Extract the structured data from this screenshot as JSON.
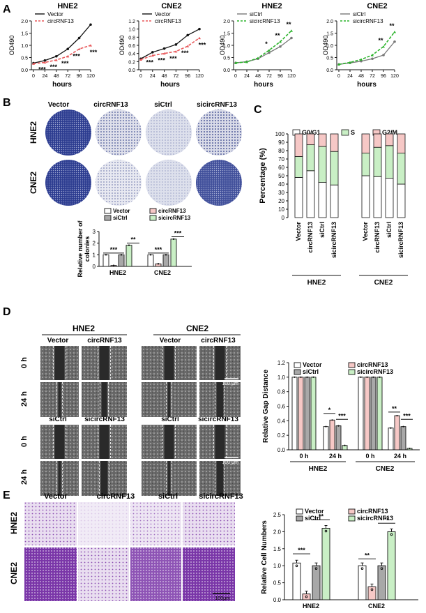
{
  "panels": {
    "A": "A",
    "B": "B",
    "C": "C",
    "D": "D",
    "E": "E"
  },
  "colors": {
    "black": "#111111",
    "red": "#e8585a",
    "grey": "#777777",
    "green": "#2bb32b",
    "navy": "#283a8e",
    "purple": "#7c3aa5",
    "lightred": "#f6c8c6",
    "lightgreen": "#c9efc5",
    "midgrey": "#a8a8a8"
  },
  "panel_b": {
    "col_labels": [
      "Vector",
      "circRNF13",
      "siCtrl",
      "sicircRNF13"
    ],
    "row_labels": [
      "HNE2",
      "CNE2"
    ]
  },
  "panel_d": {
    "group_labels": [
      "HNE2",
      "CNE2"
    ],
    "top_labels": [
      "Vector",
      "circRNF13",
      "Vector",
      "circRNF13"
    ],
    "bottom_labels": [
      "siCtrl",
      "sicircRNF13",
      "siCtrl",
      "sicircRNF13"
    ],
    "time_labels": [
      "0 h",
      "24 h",
      "0 h",
      "24 h"
    ],
    "scale_bar": "100 μm"
  },
  "panel_e": {
    "col_labels": [
      "Vector",
      "circRNF13",
      "siCtrl",
      "sicircRNF13"
    ],
    "row_labels": [
      "HNE2",
      "CNE2"
    ],
    "scale_bar": "100μm"
  },
  "chart_data": [
    {
      "id": "A1",
      "type": "line",
      "title": "HNE2",
      "xlabel": "hours",
      "ylabel": "OD490",
      "x": [
        0,
        24,
        48,
        72,
        96,
        120
      ],
      "xlim": [
        0,
        120
      ],
      "ylim": [
        0,
        2.0
      ],
      "yticks": [
        0,
        0.5,
        1.0,
        1.5,
        2.0
      ],
      "series": [
        {
          "name": "Vector",
          "values": [
            0.27,
            0.38,
            0.55,
            0.85,
            1.3,
            1.85
          ]
        },
        {
          "name": "circRNF13",
          "values": [
            0.25,
            0.3,
            0.4,
            0.55,
            0.85,
            1.0
          ]
        }
      ],
      "annotations": [
        "***",
        "***",
        "***",
        "***",
        "***"
      ]
    },
    {
      "id": "A2",
      "type": "line",
      "title": "CNE2",
      "xlabel": "hours",
      "ylabel": "OD490",
      "x": [
        0,
        24,
        48,
        72,
        96,
        120
      ],
      "xlim": [
        0,
        120
      ],
      "ylim": [
        0,
        1.2
      ],
      "yticks": [
        0,
        0.2,
        0.4,
        0.6,
        0.8,
        1.0,
        1.2
      ],
      "series": [
        {
          "name": "Vector",
          "values": [
            0.27,
            0.43,
            0.52,
            0.62,
            0.85,
            1.0
          ]
        },
        {
          "name": "circRNF13",
          "values": [
            0.25,
            0.35,
            0.4,
            0.45,
            0.58,
            0.78
          ]
        }
      ],
      "annotations": [
        "***",
        "***",
        "***",
        "***",
        "***"
      ]
    },
    {
      "id": "A3",
      "type": "line",
      "title": "HNE2",
      "xlabel": "hours",
      "ylabel": "OD490",
      "x": [
        0,
        24,
        48,
        72,
        96,
        120
      ],
      "xlim": [
        0,
        120
      ],
      "ylim": [
        0,
        2.0
      ],
      "yticks": [
        0,
        0.5,
        1.0,
        1.5,
        2.0
      ],
      "series": [
        {
          "name": "siCtrl",
          "values": [
            0.28,
            0.33,
            0.45,
            0.7,
            0.95,
            1.3
          ]
        },
        {
          "name": "sicircRNF13",
          "values": [
            0.28,
            0.32,
            0.48,
            0.8,
            1.15,
            1.6
          ]
        }
      ],
      "annotations": [
        "*",
        "**",
        "**"
      ]
    },
    {
      "id": "A4",
      "type": "line",
      "title": "CNE2",
      "xlabel": "hours",
      "ylabel": "OD490",
      "x": [
        0,
        24,
        48,
        72,
        96,
        120
      ],
      "xlim": [
        0,
        120
      ],
      "ylim": [
        0,
        2.0
      ],
      "yticks": [
        0,
        0.5,
        1.0,
        1.5,
        2.0
      ],
      "series": [
        {
          "name": "siCtrl",
          "values": [
            0.22,
            0.28,
            0.35,
            0.45,
            0.6,
            1.15
          ]
        },
        {
          "name": "sicircRNF13",
          "values": [
            0.22,
            0.3,
            0.42,
            0.6,
            0.95,
            1.55
          ]
        }
      ],
      "annotations": [
        "**",
        "**"
      ]
    },
    {
      "id": "B",
      "type": "bar",
      "ylabel": "Relative number of colonies",
      "ylim": [
        0,
        3
      ],
      "yticks": [
        0,
        1,
        2,
        3
      ],
      "categories": [
        "HNE2",
        "CNE2"
      ],
      "series": [
        {
          "name": "Vector",
          "values": [
            1.0,
            1.0
          ]
        },
        {
          "name": "circRNF13",
          "values": [
            0.08,
            0.22
          ]
        },
        {
          "name": "siCtrl",
          "values": [
            1.0,
            1.0
          ]
        },
        {
          "name": "sicircRNF13",
          "values": [
            1.82,
            2.35
          ]
        }
      ],
      "annotations": [
        "***",
        "**",
        "***",
        "***"
      ]
    },
    {
      "id": "C",
      "type": "bar",
      "ylabel": "Percentage (%)",
      "ylim": [
        0,
        100
      ],
      "yticks": [
        0,
        10,
        20,
        30,
        40,
        50,
        60,
        70,
        80,
        90,
        100
      ],
      "categories": [
        "Vector",
        "circRNF13",
        "siCtrl",
        "sicircRNF13",
        "Vector",
        "circRNF13",
        "siCtrl",
        "sicircRNF13"
      ],
      "groups": [
        "HNE2",
        "CNE2"
      ],
      "series": [
        {
          "name": "G0/G1",
          "values": [
            48,
            56,
            42,
            39,
            50,
            49,
            47,
            40
          ]
        },
        {
          "name": "S",
          "values": [
            25,
            31,
            43,
            40,
            27,
            35,
            39,
            37
          ]
        },
        {
          "name": "G2/M",
          "values": [
            27,
            13,
            15,
            21,
            23,
            16,
            14,
            23
          ]
        }
      ]
    },
    {
      "id": "D",
      "type": "bar",
      "ylabel": "Relative Gap Distance",
      "ylim": [
        0,
        1.2
      ],
      "yticks": [
        0,
        0.2,
        0.4,
        0.6,
        0.8,
        1.0,
        1.2
      ],
      "categories": [
        "0 h",
        "24 h",
        "0 h",
        "24 h"
      ],
      "groups": [
        "HNE2",
        "CNE2"
      ],
      "series": [
        {
          "name": "Vector",
          "values": [
            1.0,
            0.32,
            1.0,
            0.3
          ]
        },
        {
          "name": "circRNF13",
          "values": [
            1.0,
            0.41,
            1.0,
            0.47
          ]
        },
        {
          "name": "siCtrl",
          "values": [
            1.0,
            0.33,
            1.0,
            0.32
          ]
        },
        {
          "name": "sicircRNF13",
          "values": [
            1.0,
            0.06,
            1.0,
            0.02
          ]
        }
      ],
      "annotations": [
        "*",
        "***",
        "**",
        "***"
      ]
    },
    {
      "id": "E",
      "type": "bar",
      "ylabel": "Relative Cell Numbers",
      "ylim": [
        0,
        2.5
      ],
      "yticks": [
        0,
        0.5,
        1.0,
        1.5,
        2.0,
        2.5
      ],
      "categories": [
        "HNE2",
        "CNE2"
      ],
      "series": [
        {
          "name": "Vector",
          "values": [
            1.08,
            1.0
          ]
        },
        {
          "name": "circRNF13",
          "values": [
            0.17,
            0.38
          ]
        },
        {
          "name": "siCtrl",
          "values": [
            1.0,
            1.0
          ]
        },
        {
          "name": "sicircRNF13",
          "values": [
            2.1,
            2.0
          ]
        }
      ],
      "annotations": [
        "***",
        "**",
        "**",
        "**"
      ]
    }
  ]
}
